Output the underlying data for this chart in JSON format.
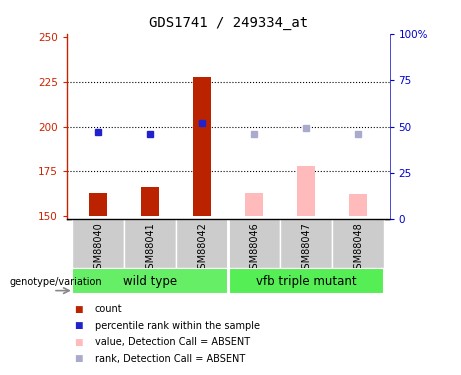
{
  "title": "GDS1741 / 249334_at",
  "samples": [
    "GSM88040",
    "GSM88041",
    "GSM88042",
    "GSM88046",
    "GSM88047",
    "GSM88048"
  ],
  "ylim_left": [
    148,
    252
  ],
  "ylim_right": [
    0,
    100
  ],
  "yticks_left": [
    150,
    175,
    200,
    225,
    250
  ],
  "yticks_right": [
    0,
    25,
    50,
    75,
    100
  ],
  "bar_values": [
    163,
    166,
    228,
    163,
    178,
    162
  ],
  "dot_values": [
    197,
    196,
    202,
    196,
    199,
    196
  ],
  "bar_colors": [
    "#bb2200",
    "#bb2200",
    "#bb2200",
    "#ffbbbb",
    "#ffbbbb",
    "#ffbbbb"
  ],
  "dot_colors": [
    "#2222cc",
    "#2222cc",
    "#2222cc",
    "#aaaacc",
    "#aaaacc",
    "#aaaacc"
  ],
  "base_value": 150,
  "bar_width": 0.35,
  "group_wt_color": "#66ee66",
  "group_vfb_color": "#55ee55",
  "label_bg_color": "#cccccc",
  "legend_items": [
    {
      "label": "count",
      "color": "#bb2200"
    },
    {
      "label": "percentile rank within the sample",
      "color": "#2222cc"
    },
    {
      "label": "value, Detection Call = ABSENT",
      "color": "#ffbbbb"
    },
    {
      "label": "rank, Detection Call = ABSENT",
      "color": "#aaaacc"
    }
  ],
  "dotted_lines": [
    175,
    200,
    225
  ]
}
